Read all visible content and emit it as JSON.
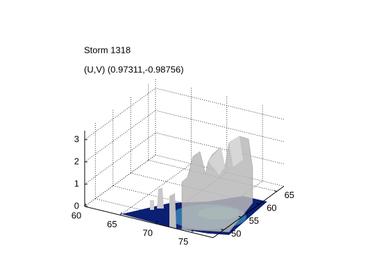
{
  "chart_data": {
    "type": "surface3d",
    "title": "Storm 1318",
    "subtitle": "(U,V) (0.97311,-0.98756)",
    "xlim": [
      60,
      78
    ],
    "xticks": [
      60,
      65,
      70,
      75
    ],
    "ylim": [
      47,
      67
    ],
    "yticks": [
      50,
      55,
      60,
      65
    ],
    "zlim": [
      0,
      3.4
    ],
    "zticks": [
      0,
      1,
      2,
      3
    ],
    "grid": true
  }
}
